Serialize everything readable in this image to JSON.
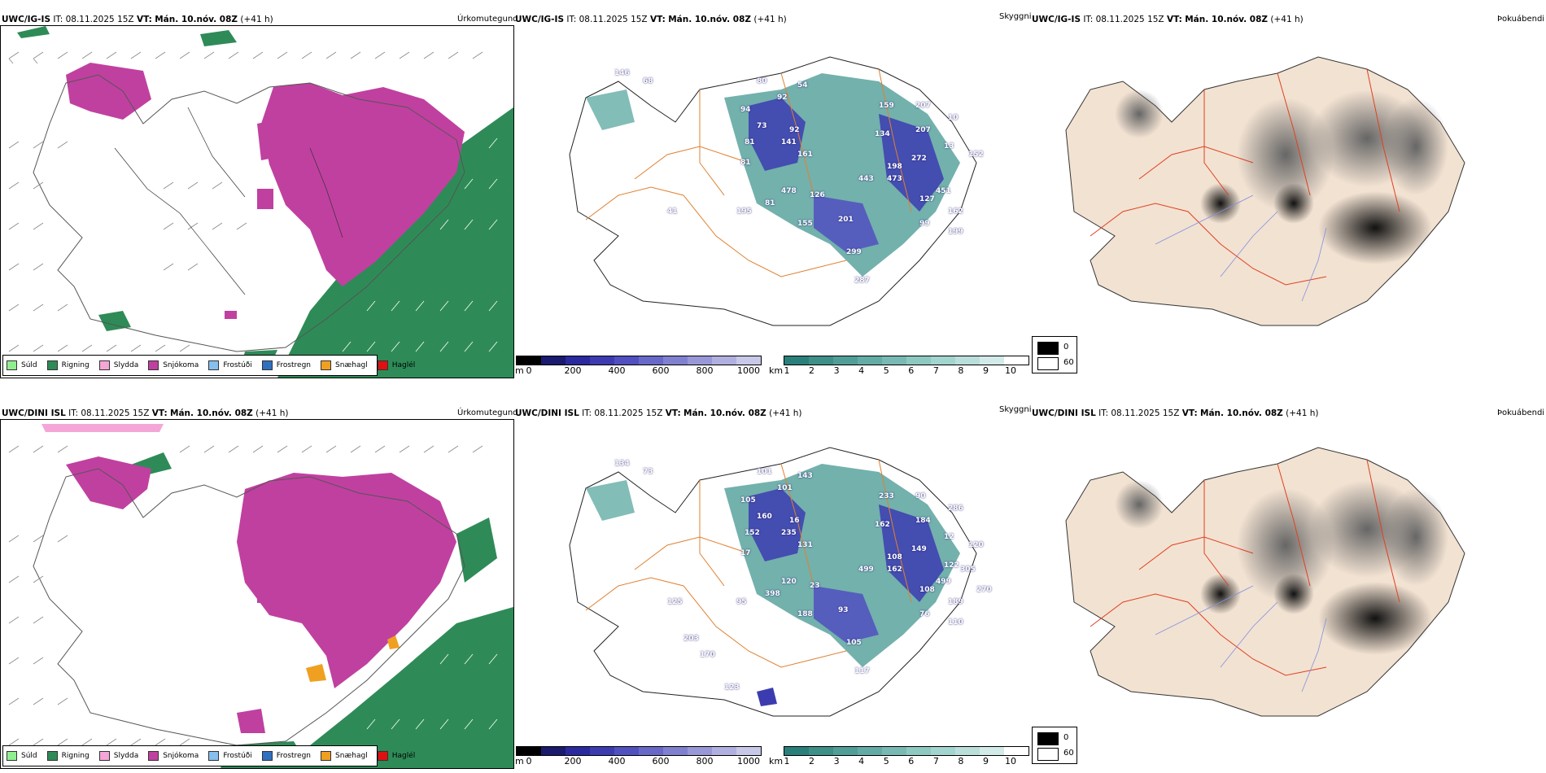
{
  "rows": [
    {
      "model": "UWC/IG-IS",
      "it_label": "IT:",
      "it_value": "08.11.2025 15Z",
      "vt_label": "VT:",
      "vt_value": "Mán. 10.nóv. 08Z",
      "lead": "(+41 h)"
    },
    {
      "model": "UWC/DINI ISL",
      "it_label": "IT:",
      "it_value": "08.11.2025 15Z",
      "vt_label": "VT:",
      "vt_value": "Mán. 10.nóv. 08Z",
      "lead": "(+41 h)"
    }
  ],
  "panels": {
    "precip_title": "Úrkomutegund",
    "cloud_title": "Skyggni",
    "fog_title": "Þokuábendi"
  },
  "precip_legend": [
    {
      "label": "Súld",
      "color": "#90EE90"
    },
    {
      "label": "Rigning",
      "color": "#2E8B57"
    },
    {
      "label": "Slydda",
      "color": "#F4A6D7"
    },
    {
      "label": "Snjókoma",
      "color": "#C040A0"
    },
    {
      "label": "Frostúði",
      "color": "#87BFEE"
    },
    {
      "label": "Frostregn",
      "color": "#3070C0"
    },
    {
      "label": "Snæhagl",
      "color": "#F0A020"
    },
    {
      "label": "Haglél",
      "color": "#E01010"
    }
  ],
  "height_bar": {
    "unit": "m",
    "ticks": [
      "0",
      "200",
      "400",
      "600",
      "800",
      "1000"
    ],
    "colors": [
      "#000000",
      "#1a1a6e",
      "#2a2a9e",
      "#3c3cb0",
      "#5050c0",
      "#6868c8",
      "#8080d0",
      "#9898d8",
      "#b0b0e0",
      "#c8c8e8"
    ]
  },
  "vis_bar": {
    "unit": "km",
    "ticks": [
      "1",
      "2",
      "3",
      "4",
      "5",
      "6",
      "7",
      "8",
      "9",
      "10"
    ],
    "colors": [
      "#2a7f7a",
      "#3d8f88",
      "#509e97",
      "#63aca5",
      "#78bab3",
      "#8dc8c1",
      "#a3d5cf",
      "#badfdb",
      "#d2ebe8",
      "#ffffff"
    ]
  },
  "fog_legend": [
    {
      "label": "0",
      "color": "#000000"
    },
    {
      "label": "60",
      "color": "#ffffff"
    }
  ],
  "ceiling_labels_top": [
    "146",
    "68",
    "80",
    "92",
    "54",
    "94",
    "73",
    "92",
    "81",
    "141",
    "161",
    "81",
    "159",
    "207",
    "134",
    "207",
    "10",
    "272",
    "198",
    "13",
    "152",
    "443",
    "473",
    "451",
    "478",
    "126",
    "127",
    "195",
    "81",
    "162",
    "155",
    "201",
    "99",
    "199",
    "299",
    "287",
    "41"
  ],
  "ceiling_labels_bottom": [
    "134",
    "73",
    "101",
    "101",
    "143",
    "105",
    "160",
    "16",
    "152",
    "235",
    "131",
    "17",
    "233",
    "90",
    "162",
    "184",
    "286",
    "149",
    "108",
    "12",
    "120",
    "499",
    "162",
    "499",
    "120",
    "23",
    "108",
    "95",
    "398",
    "189",
    "188",
    "93",
    "76",
    "110",
    "105",
    "117",
    "125",
    "203",
    "123",
    "305",
    "270",
    "170",
    "122"
  ]
}
